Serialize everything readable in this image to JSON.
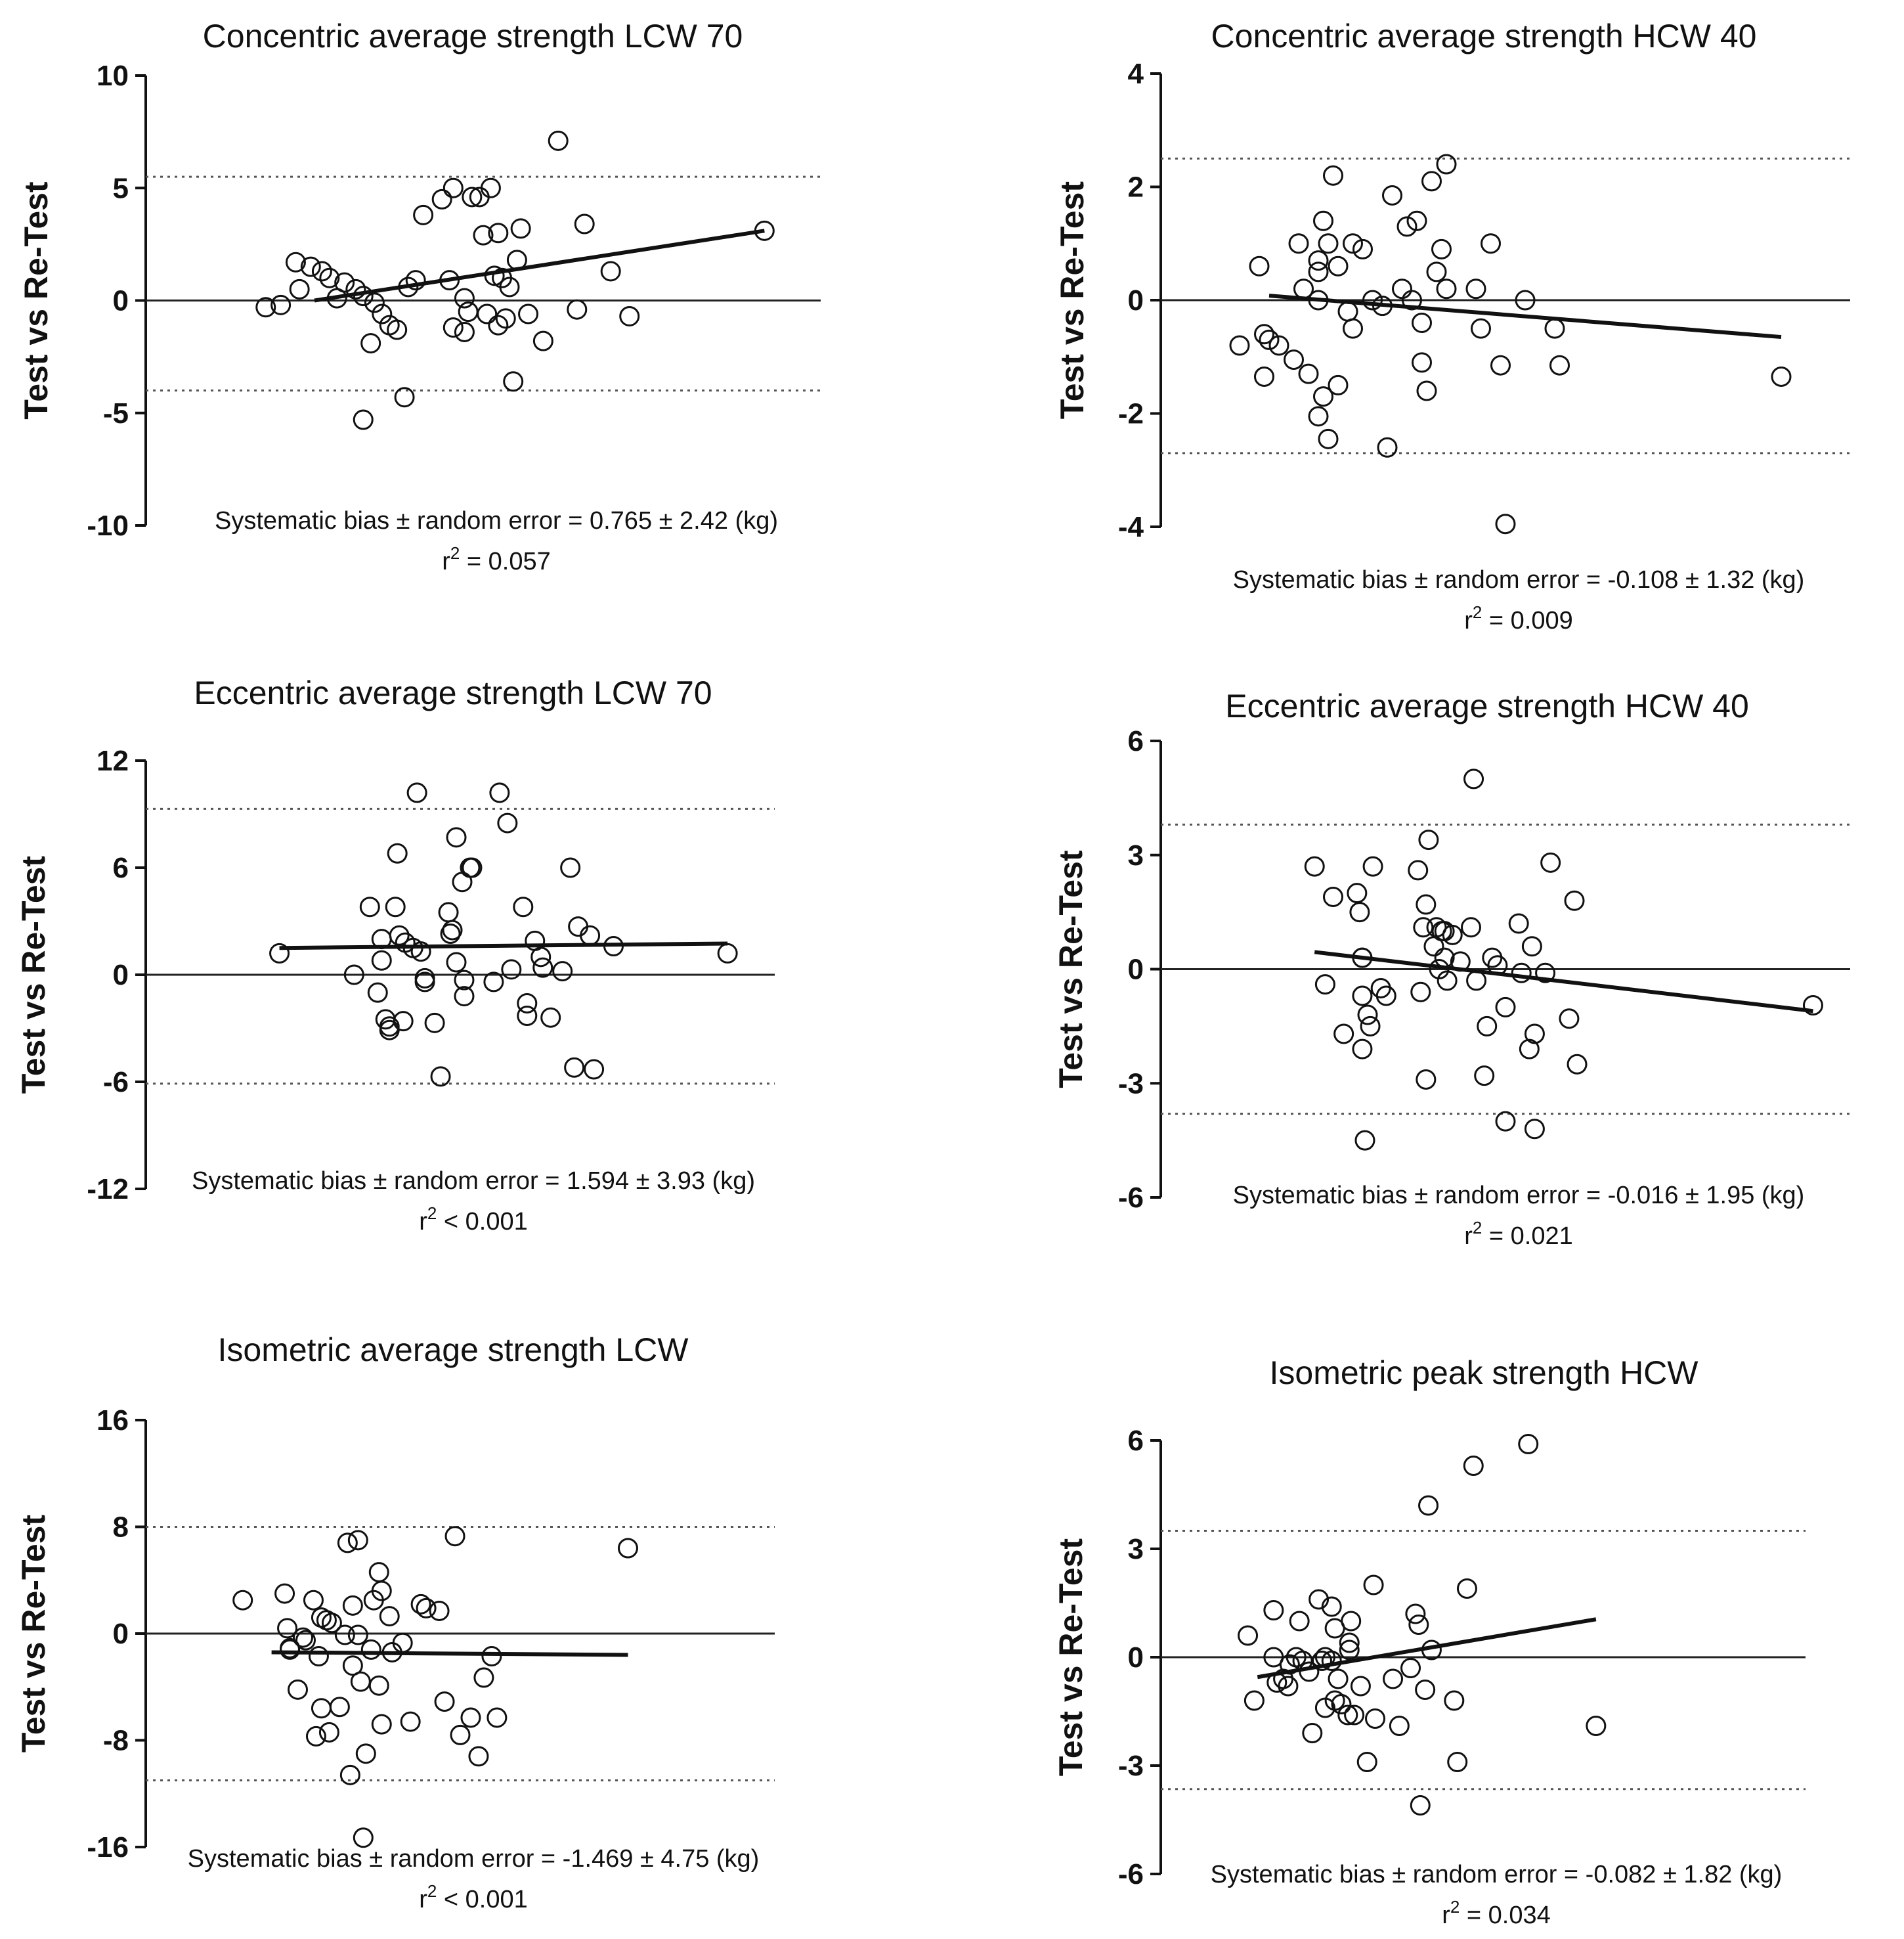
{
  "chart_data": [
    {
      "type": "scatter",
      "title": "Concentric average strength LCW 70",
      "ylabel": "Test vs Re-Test",
      "ylim": [
        -10,
        10
      ],
      "yticks": [
        10,
        5,
        0,
        -5,
        -10
      ],
      "xlim": [
        56,
        74
      ],
      "loa": [
        5.5,
        -4.0
      ],
      "regression": {
        "x": [
          60.5,
          72.5
        ],
        "y": [
          0.0,
          3.1
        ]
      },
      "stats": {
        "bias_text": "Systematic bias ± random error = 0.765 ± 2.42 (kg)",
        "r2_prefix": "r",
        "r2_value": " = 0.057"
      },
      "points": [
        [
          59.2,
          -0.3
        ],
        [
          59.6,
          -0.2
        ],
        [
          60.0,
          1.7
        ],
        [
          60.1,
          0.5
        ],
        [
          60.4,
          1.5
        ],
        [
          60.7,
          1.3
        ],
        [
          60.9,
          1.0
        ],
        [
          61.1,
          0.1
        ],
        [
          61.3,
          0.8
        ],
        [
          61.6,
          0.5
        ],
        [
          61.8,
          0.2
        ],
        [
          62.1,
          -0.1
        ],
        [
          62.3,
          -0.6
        ],
        [
          62.0,
          -1.9
        ],
        [
          61.8,
          -5.3
        ],
        [
          62.5,
          -1.1
        ],
        [
          62.7,
          -1.3
        ],
        [
          63.0,
          0.6
        ],
        [
          63.2,
          0.9
        ],
        [
          63.4,
          3.8
        ],
        [
          62.9,
          -4.3
        ],
        [
          63.9,
          4.5
        ],
        [
          64.2,
          5.0
        ],
        [
          64.1,
          0.9
        ],
        [
          64.7,
          4.6
        ],
        [
          64.9,
          4.6
        ],
        [
          65.2,
          5.0
        ],
        [
          65.0,
          2.9
        ],
        [
          64.5,
          0.1
        ],
        [
          64.6,
          -0.5
        ],
        [
          64.2,
          -1.2
        ],
        [
          64.5,
          -1.4
        ],
        [
          65.1,
          -0.6
        ],
        [
          65.3,
          1.1
        ],
        [
          65.5,
          1.0
        ],
        [
          65.7,
          0.6
        ],
        [
          65.4,
          -1.1
        ],
        [
          65.6,
          -0.8
        ],
        [
          65.9,
          1.8
        ],
        [
          66.0,
          3.2
        ],
        [
          65.4,
          3.0
        ],
        [
          66.2,
          -0.6
        ],
        [
          65.8,
          -3.6
        ],
        [
          66.6,
          -1.8
        ],
        [
          67.0,
          7.1
        ],
        [
          67.5,
          -0.4
        ],
        [
          67.7,
          3.4
        ],
        [
          68.4,
          1.3
        ],
        [
          68.9,
          -0.7
        ],
        [
          72.5,
          3.1
        ]
      ]
    },
    {
      "type": "scatter",
      "title": "Concentric average strength HCW 40",
      "ylabel": "Test vs Re-Test",
      "ylim": [
        -4,
        4
      ],
      "yticks": [
        4,
        2,
        0,
        -2,
        -4
      ],
      "xlim": [
        29,
        36
      ],
      "loa": [
        2.5,
        -2.7
      ],
      "regression": {
        "x": [
          30.1,
          35.3
        ],
        "y": [
          0.08,
          -0.65
        ]
      },
      "stats": {
        "bias_text": "Systematic bias ± random error = -0.108 ± 1.32 (kg)",
        "r2_prefix": "r",
        "r2_value": " = 0.009"
      },
      "points": [
        [
          29.8,
          -0.8
        ],
        [
          30.0,
          0.6
        ],
        [
          30.05,
          -0.6
        ],
        [
          30.1,
          -0.7
        ],
        [
          30.05,
          -1.35
        ],
        [
          30.2,
          -0.8
        ],
        [
          30.35,
          -1.05
        ],
        [
          30.4,
          1.0
        ],
        [
          30.45,
          0.2
        ],
        [
          30.5,
          -1.3
        ],
        [
          30.6,
          0.0
        ],
        [
          30.6,
          0.5
        ],
        [
          30.6,
          0.7
        ],
        [
          30.7,
          1.0
        ],
        [
          30.65,
          1.4
        ],
        [
          30.75,
          2.2
        ],
        [
          30.8,
          0.6
        ],
        [
          30.8,
          -1.5
        ],
        [
          30.65,
          -1.7
        ],
        [
          30.6,
          -2.05
        ],
        [
          30.7,
          -2.45
        ],
        [
          30.9,
          -0.2
        ],
        [
          30.95,
          -0.5
        ],
        [
          30.95,
          1.0
        ],
        [
          31.05,
          0.9
        ],
        [
          31.15,
          0.0
        ],
        [
          31.25,
          -0.1
        ],
        [
          31.35,
          1.85
        ],
        [
          31.3,
          -2.6
        ],
        [
          31.5,
          1.3
        ],
        [
          31.45,
          0.2
        ],
        [
          31.55,
          0.0
        ],
        [
          31.6,
          1.4
        ],
        [
          31.65,
          -0.4
        ],
        [
          31.65,
          -1.1
        ],
        [
          31.7,
          -1.6
        ],
        [
          31.75,
          2.1
        ],
        [
          31.8,
          0.5
        ],
        [
          31.85,
          0.9
        ],
        [
          31.9,
          2.4
        ],
        [
          31.9,
          0.2
        ],
        [
          32.2,
          0.2
        ],
        [
          32.25,
          -0.5
        ],
        [
          32.35,
          1.0
        ],
        [
          32.45,
          -1.15
        ],
        [
          32.5,
          -3.95
        ],
        [
          32.7,
          0.0
        ],
        [
          33.0,
          -0.5
        ],
        [
          33.05,
          -1.15
        ],
        [
          35.3,
          -1.35
        ]
      ]
    },
    {
      "type": "scatter",
      "title": "Eccentric average strength LCW 70",
      "ylabel": "Test vs Re-Test",
      "ylim": [
        -12,
        12
      ],
      "yticks": [
        12,
        6,
        0,
        -6,
        -12
      ],
      "xlim": [
        76,
        92
      ],
      "loa": [
        9.3,
        -6.1
      ],
      "regression": {
        "x": [
          79.4,
          90.8
        ],
        "y": [
          1.5,
          1.75
        ]
      },
      "stats": {
        "bias_text": "Systematic bias ± random error = 1.594 ± 3.93 (kg)",
        "r2_prefix": "r",
        "r2_value": " < 0.001"
      },
      "points": [
        [
          79.4,
          1.2
        ],
        [
          81.3,
          0.0
        ],
        [
          81.7,
          3.8
        ],
        [
          81.9,
          -1.0
        ],
        [
          82.0,
          0.8
        ],
        [
          82.0,
          2.0
        ],
        [
          82.1,
          -2.5
        ],
        [
          82.2,
          -2.9
        ],
        [
          82.2,
          -3.1
        ],
        [
          82.35,
          3.8
        ],
        [
          82.4,
          6.8
        ],
        [
          82.45,
          2.2
        ],
        [
          82.55,
          -2.6
        ],
        [
          82.6,
          1.8
        ],
        [
          82.8,
          1.5
        ],
        [
          82.9,
          10.2
        ],
        [
          83.0,
          1.3
        ],
        [
          83.1,
          -0.2
        ],
        [
          83.1,
          -0.4
        ],
        [
          83.35,
          -2.7
        ],
        [
          83.5,
          -5.7
        ],
        [
          83.7,
          3.5
        ],
        [
          83.75,
          2.3
        ],
        [
          83.8,
          2.5
        ],
        [
          83.9,
          7.7
        ],
        [
          83.9,
          0.7
        ],
        [
          84.05,
          5.2
        ],
        [
          84.1,
          -0.3
        ],
        [
          84.1,
          -1.2
        ],
        [
          84.25,
          6.0
        ],
        [
          84.3,
          6.0
        ],
        [
          84.85,
          -0.4
        ],
        [
          85.0,
          10.2
        ],
        [
          85.2,
          8.5
        ],
        [
          85.3,
          0.3
        ],
        [
          85.6,
          3.8
        ],
        [
          85.7,
          -1.6
        ],
        [
          85.7,
          -2.3
        ],
        [
          85.9,
          1.9
        ],
        [
          86.05,
          1.0
        ],
        [
          86.1,
          0.4
        ],
        [
          86.3,
          -2.4
        ],
        [
          86.6,
          0.2
        ],
        [
          86.8,
          6.0
        ],
        [
          86.9,
          -5.2
        ],
        [
          87.0,
          2.7
        ],
        [
          87.3,
          2.2
        ],
        [
          87.4,
          -5.3
        ],
        [
          87.9,
          1.6
        ],
        [
          90.8,
          1.2
        ]
      ]
    },
    {
      "type": "scatter",
      "title": "Eccentric average strength HCW 40",
      "ylabel": "Test vs Re-Test",
      "ylim": [
        -6,
        6
      ],
      "yticks": [
        6,
        3,
        0,
        -3,
        -6
      ],
      "xlim": [
        40,
        53
      ],
      "loa": [
        3.8,
        -3.8
      ],
      "regression": {
        "x": [
          42.9,
          52.3
        ],
        "y": [
          0.45,
          -1.1
        ]
      },
      "stats": {
        "bias_text": "Systematic bias ± random error = -0.016 ± 1.95 (kg)",
        "r2_prefix": "r",
        "r2_value": " = 0.021"
      },
      "points": [
        [
          42.9,
          2.7
        ],
        [
          43.1,
          -0.4
        ],
        [
          43.25,
          1.9
        ],
        [
          43.45,
          -1.7
        ],
        [
          43.7,
          2.0
        ],
        [
          43.75,
          1.5
        ],
        [
          43.8,
          0.3
        ],
        [
          43.8,
          0.3
        ],
        [
          43.8,
          -0.7
        ],
        [
          43.8,
          -2.1
        ],
        [
          43.85,
          -4.5
        ],
        [
          43.9,
          -1.2
        ],
        [
          43.95,
          -1.5
        ],
        [
          44.0,
          2.7
        ],
        [
          44.15,
          -0.5
        ],
        [
          44.25,
          -0.7
        ],
        [
          44.85,
          2.6
        ],
        [
          44.9,
          -0.6
        ],
        [
          44.95,
          1.1
        ],
        [
          45.0,
          -2.9
        ],
        [
          45.05,
          3.4
        ],
        [
          45.0,
          1.7
        ],
        [
          45.15,
          0.6
        ],
        [
          45.2,
          1.1
        ],
        [
          45.25,
          0.0
        ],
        [
          45.3,
          1.0
        ],
        [
          45.35,
          1.0
        ],
        [
          45.35,
          0.3
        ],
        [
          45.4,
          -0.3
        ],
        [
          45.5,
          0.9
        ],
        [
          45.65,
          0.2
        ],
        [
          45.85,
          1.1
        ],
        [
          45.9,
          5.0
        ],
        [
          45.95,
          -0.3
        ],
        [
          46.1,
          -2.8
        ],
        [
          46.15,
          -1.5
        ],
        [
          46.25,
          0.3
        ],
        [
          46.35,
          0.1
        ],
        [
          46.5,
          -1.0
        ],
        [
          46.5,
          -4.0
        ],
        [
          46.75,
          1.2
        ],
        [
          46.8,
          -0.1
        ],
        [
          46.95,
          -2.1
        ],
        [
          47.0,
          0.6
        ],
        [
          47.05,
          -1.7
        ],
        [
          47.05,
          -4.2
        ],
        [
          47.25,
          -0.1
        ],
        [
          47.35,
          2.8
        ],
        [
          47.7,
          -1.3
        ],
        [
          47.8,
          1.8
        ],
        [
          47.85,
          -2.5
        ],
        [
          52.3,
          -0.95
        ]
      ]
    },
    {
      "type": "scatter",
      "title": "Isometric average strength LCW",
      "ylabel": "Test vs Re-Test",
      "ylim": [
        -16,
        16
      ],
      "yticks": [
        16,
        8,
        0,
        -8,
        -16
      ],
      "xlim": [
        60,
        84
      ],
      "loa": [
        8.0,
        -11.0
      ],
      "regression": {
        "x": [
          64.8,
          78.4
        ],
        "y": [
          -1.4,
          -1.6
        ]
      },
      "stats": {
        "bias_text": "Systematic bias ± random error = -1.469 ± 4.75 (kg)",
        "r2_prefix": "r",
        "r2_value": " < 0.001"
      },
      "points": [
        [
          63.7,
          2.5
        ],
        [
          65.3,
          3.0
        ],
        [
          65.4,
          0.4
        ],
        [
          65.5,
          -1.1
        ],
        [
          65.5,
          -1.2
        ],
        [
          65.8,
          -4.2
        ],
        [
          66.0,
          -0.3
        ],
        [
          66.1,
          -0.5
        ],
        [
          66.4,
          2.5
        ],
        [
          66.5,
          -7.7
        ],
        [
          66.6,
          -1.7
        ],
        [
          66.7,
          -5.6
        ],
        [
          66.7,
          1.2
        ],
        [
          66.9,
          1.0
        ],
        [
          67.0,
          -7.4
        ],
        [
          67.1,
          0.8
        ],
        [
          67.4,
          -5.5
        ],
        [
          67.6,
          -0.1
        ],
        [
          67.7,
          6.8
        ],
        [
          67.8,
          -10.6
        ],
        [
          67.9,
          -2.4
        ],
        [
          67.9,
          2.1
        ],
        [
          68.1,
          7.0
        ],
        [
          68.1,
          -0.1
        ],
        [
          68.2,
          -3.6
        ],
        [
          68.3,
          -15.3
        ],
        [
          68.4,
          -9.0
        ],
        [
          68.6,
          -1.2
        ],
        [
          68.7,
          2.5
        ],
        [
          68.9,
          4.6
        ],
        [
          69.0,
          3.2
        ],
        [
          68.9,
          -3.9
        ],
        [
          69.0,
          -6.8
        ],
        [
          69.3,
          1.3
        ],
        [
          69.4,
          -1.4
        ],
        [
          69.8,
          -0.7
        ],
        [
          70.1,
          -6.6
        ],
        [
          70.5,
          2.2
        ],
        [
          70.7,
          1.9
        ],
        [
          71.2,
          1.7
        ],
        [
          71.4,
          -5.1
        ],
        [
          71.8,
          7.3
        ],
        [
          72.0,
          -7.6
        ],
        [
          72.4,
          -6.3
        ],
        [
          72.7,
          -9.2
        ],
        [
          72.9,
          -3.3
        ],
        [
          73.2,
          -1.7
        ],
        [
          73.4,
          -6.3
        ],
        [
          78.4,
          6.4
        ]
      ]
    },
    {
      "type": "scatter",
      "title": "Isometric peak strength HCW",
      "ylabel": "Test vs Re-Test",
      "ylim": [
        -6,
        6
      ],
      "yticks": [
        6,
        3,
        0,
        -3,
        -6
      ],
      "xlim": [
        72,
        92
      ],
      "loa": [
        3.5,
        -3.65
      ],
      "regression": {
        "x": [
          75.0,
          85.5
        ],
        "y": [
          -0.55,
          1.05
        ]
      },
      "stats": {
        "bias_text": "Systematic bias ± random error = -0.082 ± 1.82 (kg)",
        "r2_prefix": "r",
        "r2_value": " = 0.034"
      },
      "points": [
        [
          74.7,
          0.6
        ],
        [
          74.9,
          -1.2
        ],
        [
          75.5,
          1.3
        ],
        [
          75.5,
          0.0
        ],
        [
          75.6,
          -0.7
        ],
        [
          75.8,
          -0.6
        ],
        [
          75.95,
          -0.8
        ],
        [
          76.0,
          -0.2
        ],
        [
          76.2,
          0.0
        ],
        [
          76.3,
          1.0
        ],
        [
          76.4,
          -0.1
        ],
        [
          76.6,
          -0.4
        ],
        [
          76.7,
          -2.1
        ],
        [
          76.9,
          1.6
        ],
        [
          77.0,
          -0.1
        ],
        [
          77.1,
          0.0
        ],
        [
          77.1,
          -1.4
        ],
        [
          77.3,
          -0.1
        ],
        [
          77.3,
          1.4
        ],
        [
          77.4,
          0.8
        ],
        [
          77.4,
          -1.2
        ],
        [
          77.5,
          -0.6
        ],
        [
          77.6,
          -1.3
        ],
        [
          77.8,
          -1.6
        ],
        [
          77.85,
          0.2
        ],
        [
          77.85,
          0.4
        ],
        [
          77.9,
          1.0
        ],
        [
          78.0,
          -1.6
        ],
        [
          78.2,
          -0.8
        ],
        [
          78.4,
          -2.9
        ],
        [
          78.6,
          2.0
        ],
        [
          78.65,
          -1.7
        ],
        [
          79.2,
          -0.6
        ],
        [
          79.4,
          -1.9
        ],
        [
          79.75,
          -0.3
        ],
        [
          79.9,
          1.2
        ],
        [
          80.0,
          0.9
        ],
        [
          80.05,
          -4.1
        ],
        [
          80.2,
          -0.9
        ],
        [
          80.3,
          4.2
        ],
        [
          80.4,
          0.2
        ],
        [
          81.1,
          -1.2
        ],
        [
          81.2,
          -2.9
        ],
        [
          81.5,
          1.9
        ],
        [
          81.7,
          5.3
        ],
        [
          83.4,
          5.9
        ],
        [
          85.5,
          -1.9
        ]
      ]
    }
  ]
}
